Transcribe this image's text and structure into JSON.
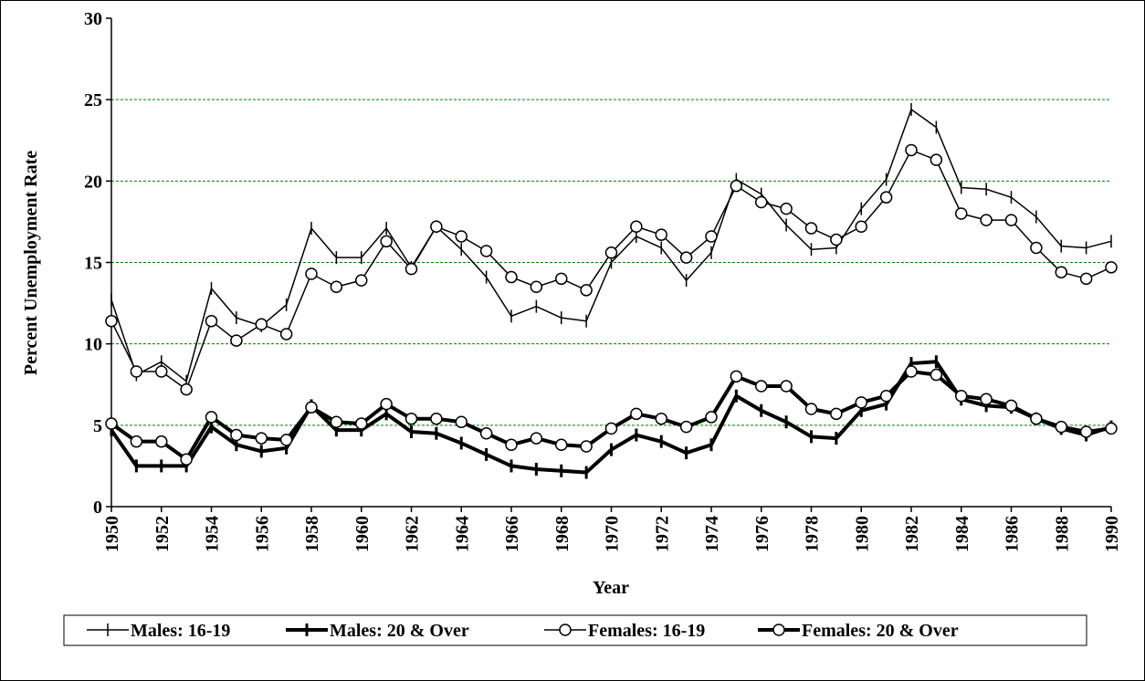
{
  "chart_data": {
    "type": "line",
    "x_label": "Year",
    "y_label": "Percent Unemployment Rate",
    "x": [
      1950,
      1951,
      1952,
      1953,
      1954,
      1955,
      1956,
      1957,
      1958,
      1959,
      1960,
      1961,
      1962,
      1963,
      1964,
      1965,
      1966,
      1967,
      1968,
      1969,
      1970,
      1971,
      1972,
      1973,
      1974,
      1975,
      1976,
      1977,
      1978,
      1979,
      1980,
      1981,
      1982,
      1983,
      1984,
      1985,
      1986,
      1987,
      1988,
      1989,
      1990
    ],
    "xlim": [
      1950,
      1990
    ],
    "xticks": [
      1950,
      1952,
      1954,
      1956,
      1958,
      1960,
      1962,
      1964,
      1966,
      1968,
      1970,
      1972,
      1974,
      1976,
      1978,
      1980,
      1982,
      1984,
      1986,
      1988,
      1990
    ],
    "ylim": [
      0,
      30
    ],
    "yticks": [
      0,
      5,
      10,
      15,
      20,
      25,
      30
    ],
    "grid": true,
    "grid_color": "#008000",
    "legend": "bottom",
    "series": [
      {
        "name": "Males: 16-19",
        "color": "#000000",
        "width": 1.5,
        "marker": "tick",
        "values": [
          12.7,
          8.1,
          8.9,
          7.7,
          13.4,
          11.6,
          11.1,
          12.4,
          17.1,
          15.3,
          15.3,
          17.1,
          14.7,
          17.2,
          15.8,
          14.1,
          11.7,
          12.3,
          11.6,
          11.4,
          15.0,
          16.6,
          15.9,
          13.9,
          15.6,
          20.1,
          19.2,
          17.3,
          15.8,
          15.9,
          18.3,
          20.1,
          24.4,
          23.3,
          19.6,
          19.5,
          19.0,
          17.8,
          16.0,
          15.9,
          16.3
        ]
      },
      {
        "name": "Males: 20 & Over",
        "color": "#000000",
        "width": 4,
        "marker": "tick",
        "values": [
          4.7,
          2.5,
          2.5,
          2.5,
          4.9,
          3.8,
          3.4,
          3.6,
          6.2,
          4.7,
          4.7,
          5.7,
          4.6,
          4.5,
          3.9,
          3.2,
          2.5,
          2.3,
          2.2,
          2.1,
          3.5,
          4.4,
          4.0,
          3.3,
          3.8,
          6.8,
          5.9,
          5.2,
          4.3,
          4.2,
          5.9,
          6.3,
          8.8,
          8.9,
          6.6,
          6.2,
          6.1,
          5.4,
          4.8,
          4.4,
          4.9
        ]
      },
      {
        "name": "Females: 16-19",
        "color": "#000000",
        "width": 1.5,
        "marker": "circle",
        "values": [
          11.4,
          8.3,
          8.3,
          7.2,
          11.4,
          10.2,
          11.2,
          10.6,
          14.3,
          13.5,
          13.9,
          16.3,
          14.6,
          17.2,
          16.6,
          15.7,
          14.1,
          13.5,
          14.0,
          13.3,
          15.6,
          17.2,
          16.7,
          15.3,
          16.6,
          19.7,
          18.7,
          18.3,
          17.1,
          16.4,
          17.2,
          19.0,
          21.9,
          21.3,
          18.0,
          17.6,
          17.6,
          15.9,
          14.4,
          14.0,
          14.7
        ]
      },
      {
        "name": "Females: 20 & Over",
        "color": "#000000",
        "width": 4,
        "marker": "circle",
        "values": [
          5.1,
          4.0,
          4.0,
          2.9,
          5.5,
          4.4,
          4.2,
          4.1,
          6.1,
          5.2,
          5.1,
          6.3,
          5.4,
          5.4,
          5.2,
          4.5,
          3.8,
          4.2,
          3.8,
          3.7,
          4.8,
          5.7,
          5.4,
          4.9,
          5.5,
          8.0,
          7.4,
          7.4,
          6.0,
          5.7,
          6.4,
          6.8,
          8.3,
          8.1,
          6.8,
          6.6,
          6.2,
          5.4,
          4.9,
          4.6,
          4.8
        ]
      }
    ]
  }
}
